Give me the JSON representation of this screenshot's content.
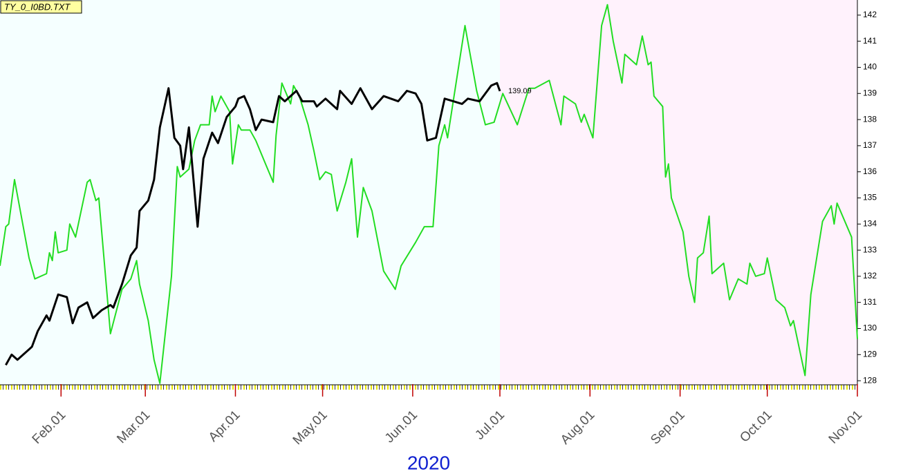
{
  "chart_data": {
    "type": "line",
    "title": "TY_0_I0BD.TXT",
    "year_label": "2020",
    "xlim": [
      "2020-01-11",
      "2020-11-01"
    ],
    "ylim": [
      127.87,
      142.42
    ],
    "yticks": [
      128,
      129,
      130,
      131,
      132,
      133,
      134,
      135,
      136,
      137,
      138,
      139,
      140,
      141,
      142
    ],
    "xticks": [
      {
        "value": "2020-02-01",
        "label": "Feb.01"
      },
      {
        "value": "2020-03-01",
        "label": "Mar.01"
      },
      {
        "value": "2020-04-01",
        "label": "Apr.01"
      },
      {
        "value": "2020-05-01",
        "label": "May.01"
      },
      {
        "value": "2020-06-01",
        "label": "Jun.01"
      },
      {
        "value": "2020-07-01",
        "label": "Jul.01"
      },
      {
        "value": "2020-08-01",
        "label": "Aug.01"
      },
      {
        "value": "2020-09-01",
        "label": "Sep.01"
      },
      {
        "value": "2020-10-01",
        "label": "Oct.01"
      },
      {
        "value": "2020-11-01",
        "label": "Nov.01"
      }
    ],
    "regions": [
      {
        "from": "2020-01-11",
        "to": "2020-07-01",
        "color": "#f5ffff"
      },
      {
        "from": "2020-07-01",
        "to": "2020-11-01",
        "color": "#fff2fc"
      }
    ],
    "series": [
      {
        "color": "#22dd22",
        "x": [
          "2020-01-11",
          "2020-01-13",
          "2020-01-14",
          "2020-01-16",
          "2020-01-21",
          "2020-01-23",
          "2020-01-27",
          "2020-01-28",
          "2020-01-29",
          "2020-01-30",
          "2020-01-31",
          "2020-02-03",
          "2020-02-04",
          "2020-02-06",
          "2020-02-10",
          "2020-02-11",
          "2020-02-13",
          "2020-02-14",
          "2020-02-18",
          "2020-02-22",
          "2020-02-25",
          "2020-02-27",
          "2020-02-28",
          "2020-03-02",
          "2020-03-04",
          "2020-03-06",
          "2020-03-10",
          "2020-03-12",
          "2020-03-13",
          "2020-03-16",
          "2020-03-18",
          "2020-03-20",
          "2020-03-23",
          "2020-03-24",
          "2020-03-25",
          "2020-03-27",
          "2020-03-30",
          "2020-03-31",
          "2020-04-02",
          "2020-04-03",
          "2020-04-06",
          "2020-04-08",
          "2020-04-11",
          "2020-04-14",
          "2020-04-15",
          "2020-04-17",
          "2020-04-20",
          "2020-04-21",
          "2020-04-23",
          "2020-04-26",
          "2020-04-28",
          "2020-04-30",
          "2020-05-02",
          "2020-05-04",
          "2020-05-06",
          "2020-05-09",
          "2020-05-11",
          "2020-05-13",
          "2020-05-15",
          "2020-05-18",
          "2020-05-22",
          "2020-05-26",
          "2020-05-28",
          "2020-06-02",
          "2020-06-05",
          "2020-06-08",
          "2020-06-10",
          "2020-06-12",
          "2020-06-13",
          "2020-06-19",
          "2020-06-23",
          "2020-06-26",
          "2020-06-29",
          "2020-07-02",
          "2020-07-07",
          "2020-07-11",
          "2020-07-13",
          "2020-07-18",
          "2020-07-22",
          "2020-07-23",
          "2020-07-27",
          "2020-07-29",
          "2020-07-30",
          "2020-08-02",
          "2020-08-05",
          "2020-08-07",
          "2020-08-09",
          "2020-08-12",
          "2020-08-13",
          "2020-08-17",
          "2020-08-19",
          "2020-08-21",
          "2020-08-22",
          "2020-08-23",
          "2020-08-26",
          "2020-08-27",
          "2020-08-28",
          "2020-08-29",
          "2020-09-02",
          "2020-09-04",
          "2020-09-06",
          "2020-09-07",
          "2020-09-09",
          "2020-09-11",
          "2020-09-12",
          "2020-09-16",
          "2020-09-18",
          "2020-09-21",
          "2020-09-24",
          "2020-09-25",
          "2020-09-27",
          "2020-09-30",
          "2020-10-01",
          "2020-10-04",
          "2020-10-07",
          "2020-10-09",
          "2020-10-10",
          "2020-10-14",
          "2020-10-16",
          "2020-10-20",
          "2020-10-23",
          "2020-10-24",
          "2020-10-25",
          "2020-10-30",
          "2020-11-01"
        ],
        "values": [
          132.4,
          133.9,
          134.0,
          135.7,
          132.7,
          131.9,
          132.1,
          132.9,
          132.6,
          133.7,
          132.9,
          133.0,
          134.0,
          133.5,
          135.6,
          135.7,
          134.9,
          135.0,
          129.8,
          131.5,
          131.9,
          132.6,
          131.7,
          130.3,
          128.8,
          127.9,
          132.0,
          136.2,
          135.8,
          136.1,
          137.2,
          137.8,
          137.8,
          138.9,
          138.3,
          138.9,
          138.3,
          136.3,
          137.8,
          137.6,
          137.6,
          137.2,
          136.4,
          135.6,
          137.4,
          139.4,
          138.6,
          139.3,
          138.9,
          137.8,
          136.8,
          135.7,
          136.0,
          135.9,
          134.5,
          135.6,
          136.5,
          133.5,
          135.4,
          134.5,
          132.2,
          131.5,
          132.4,
          133.3,
          133.9,
          133.9,
          137.0,
          137.8,
          137.3,
          141.6,
          139.1,
          137.8,
          137.9,
          139.0,
          137.8,
          139.2,
          139.2,
          139.5,
          137.8,
          138.9,
          138.6,
          137.9,
          138.2,
          137.3,
          141.6,
          142.4,
          141.0,
          139.4,
          140.5,
          140.1,
          141.2,
          140.1,
          140.2,
          138.9,
          138.5,
          135.8,
          136.3,
          135.0,
          133.7,
          132.0,
          131.0,
          132.7,
          132.9,
          134.3,
          132.1,
          132.5,
          131.1,
          131.9,
          131.7,
          132.5,
          132.0,
          132.1,
          132.7,
          131.1,
          130.8,
          130.1,
          130.3,
          128.2,
          131.3,
          134.1,
          134.7,
          134.0,
          134.8,
          133.5,
          129.6
        ]
      },
      {
        "color": "#000000",
        "x": [
          "2020-01-13",
          "2020-01-15",
          "2020-01-17",
          "2020-01-21",
          "2020-01-22",
          "2020-01-24",
          "2020-01-27",
          "2020-01-28",
          "2020-01-31",
          "2020-02-03",
          "2020-02-05",
          "2020-02-07",
          "2020-02-10",
          "2020-02-12",
          "2020-02-15",
          "2020-02-18",
          "2020-02-19",
          "2020-02-22",
          "2020-02-25",
          "2020-02-27",
          "2020-02-28",
          "2020-03-02",
          "2020-03-04",
          "2020-03-06",
          "2020-03-09",
          "2020-03-11",
          "2020-03-13",
          "2020-03-14",
          "2020-03-16",
          "2020-03-19",
          "2020-03-21",
          "2020-03-24",
          "2020-03-26",
          "2020-03-29",
          "2020-04-01",
          "2020-04-02",
          "2020-04-04",
          "2020-04-06",
          "2020-04-08",
          "2020-04-10",
          "2020-04-14",
          "2020-04-16",
          "2020-04-18",
          "2020-04-22",
          "2020-04-24",
          "2020-04-28",
          "2020-04-29",
          "2020-05-02",
          "2020-05-06",
          "2020-05-07",
          "2020-05-11",
          "2020-05-14",
          "2020-05-18",
          "2020-05-22",
          "2020-05-27",
          "2020-05-30",
          "2020-06-02",
          "2020-06-04",
          "2020-06-06",
          "2020-06-09",
          "2020-06-12",
          "2020-06-15",
          "2020-06-18",
          "2020-06-20",
          "2020-06-24",
          "2020-06-28",
          "2020-06-30",
          "2020-07-01"
        ],
        "values": [
          128.6,
          129.0,
          128.8,
          129.2,
          129.3,
          129.9,
          130.5,
          130.3,
          131.3,
          131.2,
          130.2,
          130.8,
          131.0,
          130.4,
          130.7,
          130.9,
          130.8,
          131.7,
          132.8,
          133.1,
          134.5,
          134.9,
          135.7,
          137.7,
          139.2,
          137.3,
          137.0,
          136.1,
          137.7,
          133.9,
          136.5,
          137.5,
          137.1,
          138.1,
          138.5,
          138.8,
          138.9,
          138.4,
          137.6,
          138.0,
          137.9,
          138.9,
          138.7,
          139.1,
          138.7,
          138.7,
          138.5,
          138.8,
          138.4,
          139.1,
          138.6,
          139.2,
          138.4,
          138.9,
          138.7,
          139.1,
          139.0,
          138.6,
          137.2,
          137.3,
          138.8,
          138.7,
          138.6,
          138.8,
          138.7,
          139.3,
          139.4,
          139.09
        ]
      }
    ]
  }
}
